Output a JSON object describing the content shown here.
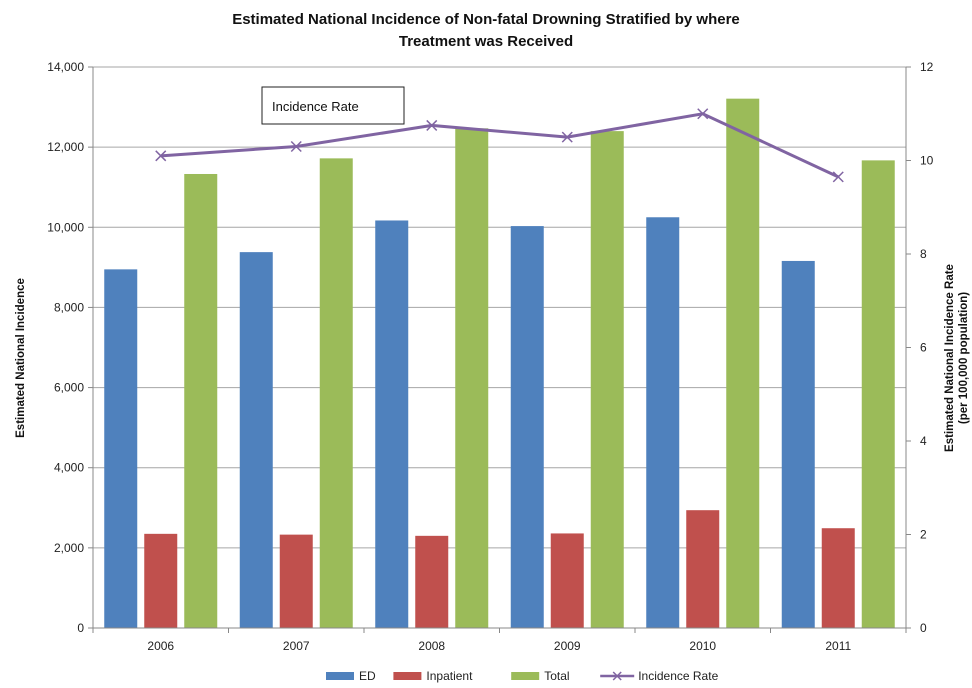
{
  "chart_data": {
    "type": "bar",
    "title_lines": [
      "Estimated National Incidence of Non-fatal Drowning Stratified by where",
      "Treatment was Received"
    ],
    "categories": [
      "2006",
      "2007",
      "2008",
      "2009",
      "2010",
      "2011"
    ],
    "series": [
      {
        "name": "ED",
        "type": "bar",
        "axis": "left",
        "color": "#4F81BD",
        "values": [
          8950,
          9380,
          10170,
          10030,
          10250,
          9160
        ]
      },
      {
        "name": "Inpatient",
        "type": "bar",
        "axis": "left",
        "color": "#C0504D",
        "values": [
          2350,
          2330,
          2300,
          2360,
          2940,
          2490
        ]
      },
      {
        "name": "Total",
        "type": "bar",
        "axis": "left",
        "color": "#9BBB59",
        "values": [
          11330,
          11720,
          12470,
          12400,
          13210,
          11670
        ]
      },
      {
        "name": "Incidence Rate",
        "type": "line",
        "axis": "right",
        "color": "#8064A2",
        "marker": "x",
        "values": [
          10.1,
          10.3,
          10.75,
          10.5,
          11.0,
          9.65
        ]
      }
    ],
    "ylabel": "Estimated National Incidence",
    "y2label_lines": [
      "Estimated National Incidence Rate",
      "(per 100,000 population)"
    ],
    "ylim": [
      0,
      14000
    ],
    "yticks": [
      0,
      2000,
      4000,
      6000,
      8000,
      10000,
      12000,
      14000
    ],
    "ytick_labels": [
      "0",
      "2,000",
      "4,000",
      "6,000",
      "8,000",
      "10,000",
      "12,000",
      "14,000"
    ],
    "y2lim": [
      0,
      12
    ],
    "y2ticks": [
      0,
      2,
      4,
      6,
      8,
      10,
      12
    ],
    "y2tick_labels": [
      "0",
      "2",
      "4",
      "6",
      "8",
      "10",
      "12"
    ],
    "grid": true,
    "legend_position": "bottom",
    "annotation": "Incidence Rate"
  }
}
